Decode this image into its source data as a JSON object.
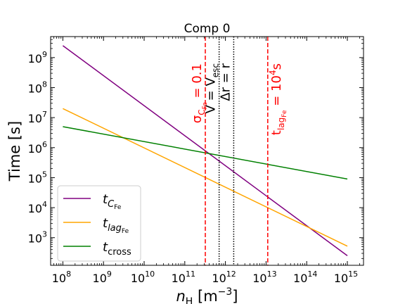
{
  "chart_data": {
    "type": "line",
    "title": "Comp 0",
    "xlabel": {
      "main": "n",
      "sub": "H",
      "rest": " [m",
      "sup": "−3",
      "end": "]"
    },
    "ylabel": "Time [s]",
    "xscale": "log",
    "yscale": "log",
    "xlim": [
      50000000.0,
      2500000000000000.0
    ],
    "ylim": [
      120,
      5000000000.0
    ],
    "x_ticks": [
      {
        "base": "10",
        "exp": "8",
        "value": 100000000.0
      },
      {
        "base": "10",
        "exp": "9",
        "value": 1000000000.0
      },
      {
        "base": "10",
        "exp": "10",
        "value": 10000000000.0
      },
      {
        "base": "10",
        "exp": "11",
        "value": 100000000000.0
      },
      {
        "base": "10",
        "exp": "12",
        "value": 1000000000000.0
      },
      {
        "base": "10",
        "exp": "13",
        "value": 10000000000000.0
      },
      {
        "base": "10",
        "exp": "14",
        "value": 100000000000000.0
      },
      {
        "base": "10",
        "exp": "15",
        "value": 1000000000000000.0
      }
    ],
    "y_ticks": [
      {
        "base": "10",
        "exp": "3",
        "value": 1000.0
      },
      {
        "base": "10",
        "exp": "4",
        "value": 10000.0
      },
      {
        "base": "10",
        "exp": "5",
        "value": 100000.0
      },
      {
        "base": "10",
        "exp": "6",
        "value": 1000000.0
      },
      {
        "base": "10",
        "exp": "7",
        "value": 10000000.0
      },
      {
        "base": "10",
        "exp": "8",
        "value": 100000000.0
      },
      {
        "base": "10",
        "exp": "9",
        "value": 1000000000.0
      }
    ],
    "series": [
      {
        "name": "t_C_Fe",
        "label_main": "t",
        "label_sub": "C",
        "label_subsub": "Fe",
        "color": "#800080",
        "x": [
          100000000.0,
          1000000000000000.0
        ],
        "y": [
          2500000000.0,
          250
        ]
      },
      {
        "name": "t_lag_Fe",
        "label_main": "t",
        "label_sub": "lag",
        "label_subsub": "Fe",
        "color": "#ffa500",
        "x": [
          100000000.0,
          1000000000000000.0
        ],
        "y": [
          20000000.0,
          520
        ]
      },
      {
        "name": "t_cross",
        "label_main": "t",
        "label_sub": "cross",
        "label_subsub": "",
        "color": "#008000",
        "x": [
          100000000.0,
          1000000000000000.0
        ],
        "y": [
          5000000.0,
          90000.0
        ]
      }
    ],
    "vlines": [
      {
        "x": 320000000000.0,
        "color": "#ff0000",
        "style": "dashed",
        "label": "σ_C_Fe = 0.1",
        "lab_main": "σ",
        "lab_sub": "C",
        "lab_subsub": "Fe",
        "lab_rest": " = 0.1"
      },
      {
        "x": 700000000000.0,
        "color": "#000000",
        "style": "dotted",
        "label": "V = V_esc",
        "lab_main": "V = V",
        "lab_sub": "esc",
        "lab_subsub": "",
        "lab_rest": ""
      },
      {
        "x": 1600000000000.0,
        "color": "#000000",
        "style": "dotted",
        "label": "Δr = r",
        "lab_main": "Δr = r",
        "lab_sub": "",
        "lab_subsub": "",
        "lab_rest": ""
      },
      {
        "x": 11000000000000.0,
        "color": "#ff0000",
        "style": "dashed",
        "label": "t_lag_Fe = 10^4 s",
        "lab_main": "t",
        "lab_sub": "lag",
        "lab_subsub": "Fe",
        "lab_rest": " = 10",
        "lab_sup": "4",
        "lab_end": "s"
      }
    ],
    "legend_position": "lower-left",
    "grid": false
  }
}
